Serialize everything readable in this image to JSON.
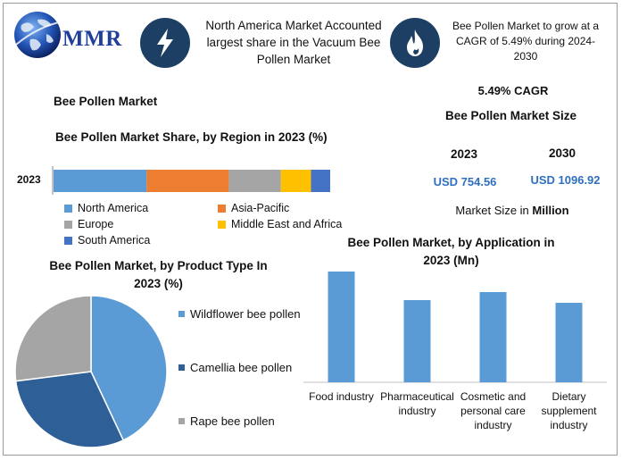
{
  "header": {
    "logo_text": "MMR",
    "note1": "North America Market Accounted largest share in the Vacuum Bee Pollen Market",
    "note2": "Bee Pollen Market to grow at a CAGR of 5.49% during 2024-2030"
  },
  "market_title": "Bee Pollen Market",
  "cagr_label": "5.49% CAGR",
  "size_title": "Bee Pollen Market Size",
  "size": {
    "year1": "2023",
    "year2": "2030",
    "value1": "USD 754.56",
    "value2": "USD 1096.92",
    "unit_prefix": "Market Size in ",
    "unit_bold": "Million"
  },
  "colors": {
    "north_america": "#5b9bd5",
    "asia_pacific": "#ed7d31",
    "europe": "#a5a5a5",
    "mea": "#ffc000",
    "south_america": "#4472c4",
    "pie_dark": "#2e5f96",
    "app_bar": "#5b9bd5",
    "icon_bg": "#1c3f63"
  },
  "chart_data": [
    {
      "type": "bar",
      "orientation": "horizontal-stacked",
      "title": "Bee Pollen Market Share, by Region in 2023 (%)",
      "categories": [
        "2023"
      ],
      "series": [
        {
          "name": "North America",
          "values": [
            34
          ]
        },
        {
          "name": "Asia-Pacific",
          "values": [
            30
          ]
        },
        {
          "name": "Europe",
          "values": [
            19
          ]
        },
        {
          "name": "Middle East and Africa",
          "values": [
            11
          ]
        },
        {
          "name": "South America",
          "values": [
            7
          ]
        }
      ],
      "legend": "bottom"
    },
    {
      "type": "pie",
      "title": "Bee Pollen Market, by Product Type In 2023 (%)",
      "labels": [
        "Wildflower bee pollen",
        "Camellia bee pollen",
        "Rape bee pollen"
      ],
      "values": [
        43,
        30,
        27
      ],
      "legend": "right"
    },
    {
      "type": "bar",
      "title": "Bee Pollen Market, by Application in 2023 (Mn)",
      "categories": [
        "Food industry",
        "Pharmaceutical industry",
        "Cosmetic and personal care industry",
        "Dietary supplement industry"
      ],
      "values": [
        124,
        92,
        101,
        89
      ],
      "ylim": [
        0,
        130
      ],
      "grid": false
    }
  ]
}
